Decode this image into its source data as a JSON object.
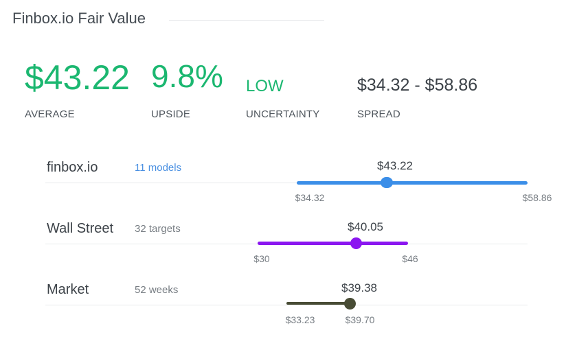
{
  "header": {
    "title": "Finbox.io Fair Value"
  },
  "metrics": {
    "average": {
      "value": "$43.22",
      "label": "AVERAGE"
    },
    "upside": {
      "value": "9.8%",
      "label": "UPSIDE"
    },
    "uncertainty": {
      "value": "LOW",
      "label": "UNCERTAINTY"
    },
    "spread": {
      "value": "$34.32 - $58.86",
      "label": "SPREAD"
    }
  },
  "colors": {
    "green": "#1bb770",
    "blue": "#3b8ee8",
    "purple": "#8b16f0",
    "olive": "#484c35",
    "link": "#4a90e2"
  },
  "rows": [
    {
      "name": "finbox.io",
      "sub": "11 models",
      "value": "$43.22",
      "low": "$34.32",
      "high": "$58.86",
      "low_num": 34.32,
      "high_num": 58.86,
      "value_num": 43.22
    },
    {
      "name": "Wall Street",
      "sub": "32 targets",
      "value": "$40.05",
      "low": "$30",
      "high": "$46",
      "low_num": 30,
      "high_num": 46,
      "value_num": 40.05
    },
    {
      "name": "Market",
      "sub": "52 weeks",
      "value": "$39.38",
      "low": "$33.23",
      "high": "$39.70",
      "low_num": 33.23,
      "high_num": 39.7,
      "value_num": 39.38
    }
  ]
}
